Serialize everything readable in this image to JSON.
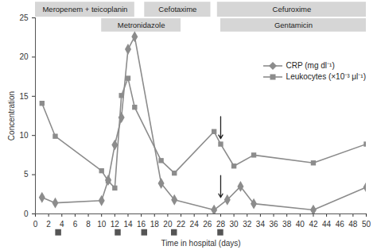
{
  "chart_data": {
    "type": "line",
    "x_label": "Time in hospital (days)",
    "y_label": "Concentration",
    "xlim": [
      0,
      50
    ],
    "xticks": [
      0,
      2,
      4,
      6,
      8,
      10,
      12,
      14,
      16,
      18,
      20,
      22,
      24,
      26,
      28,
      30,
      32,
      34,
      36,
      38,
      40,
      42,
      44,
      46,
      48,
      50
    ],
    "ylim": [
      0,
      25
    ],
    "yticks": [
      0,
      5,
      10,
      15,
      20,
      25
    ],
    "legend": "top right",
    "series": [
      {
        "name": "CRP (mg dl⁻¹)",
        "color": "#8c8c8c",
        "marker": "diamond",
        "x": [
          1,
          3,
          10,
          11,
          12,
          13,
          14,
          15,
          19,
          21,
          27,
          29,
          31,
          33,
          42,
          50
        ],
        "values": [
          2.1,
          1.4,
          1.7,
          4.3,
          8.8,
          12.3,
          21.0,
          22.6,
          3.9,
          1.8,
          0.5,
          1.8,
          3.5,
          1.3,
          0.5,
          3.4
        ]
      },
      {
        "name": "Leukocytes (×10⁻³ μl⁻¹)",
        "color": "#8c8c8c",
        "marker": "square",
        "x": [
          1,
          3,
          10,
          11,
          12,
          13,
          14,
          15,
          19,
          21,
          27,
          28,
          30,
          33,
          42,
          50
        ],
        "values": [
          14.1,
          9.9,
          5.5,
          4.2,
          3.3,
          15.1,
          17.3,
          13.6,
          6.8,
          5.2,
          10.5,
          8.9,
          6.1,
          7.5,
          6.5,
          8.9
        ]
      }
    ],
    "treatments": [
      {
        "label": "Meropenem + teicoplanin",
        "start": 0,
        "end": 15,
        "row": 1
      },
      {
        "label": "Metronidazole",
        "start": 10,
        "end": 22,
        "row": 2
      },
      {
        "label": "Cefotaxime",
        "start": 16.5,
        "end": 26.5,
        "row": 1
      },
      {
        "label": "Cefuroxime",
        "start": 27.5,
        "end": 50,
        "row": 1
      },
      {
        "label": "Gentamicin",
        "start": 28,
        "end": 50,
        "row": 2
      }
    ],
    "events": [
      3.5,
      12.5,
      16.5,
      21,
      28
    ],
    "arrows": [
      {
        "x": 28,
        "y": 9.6
      },
      {
        "x": 28,
        "y": 2.1
      }
    ]
  }
}
